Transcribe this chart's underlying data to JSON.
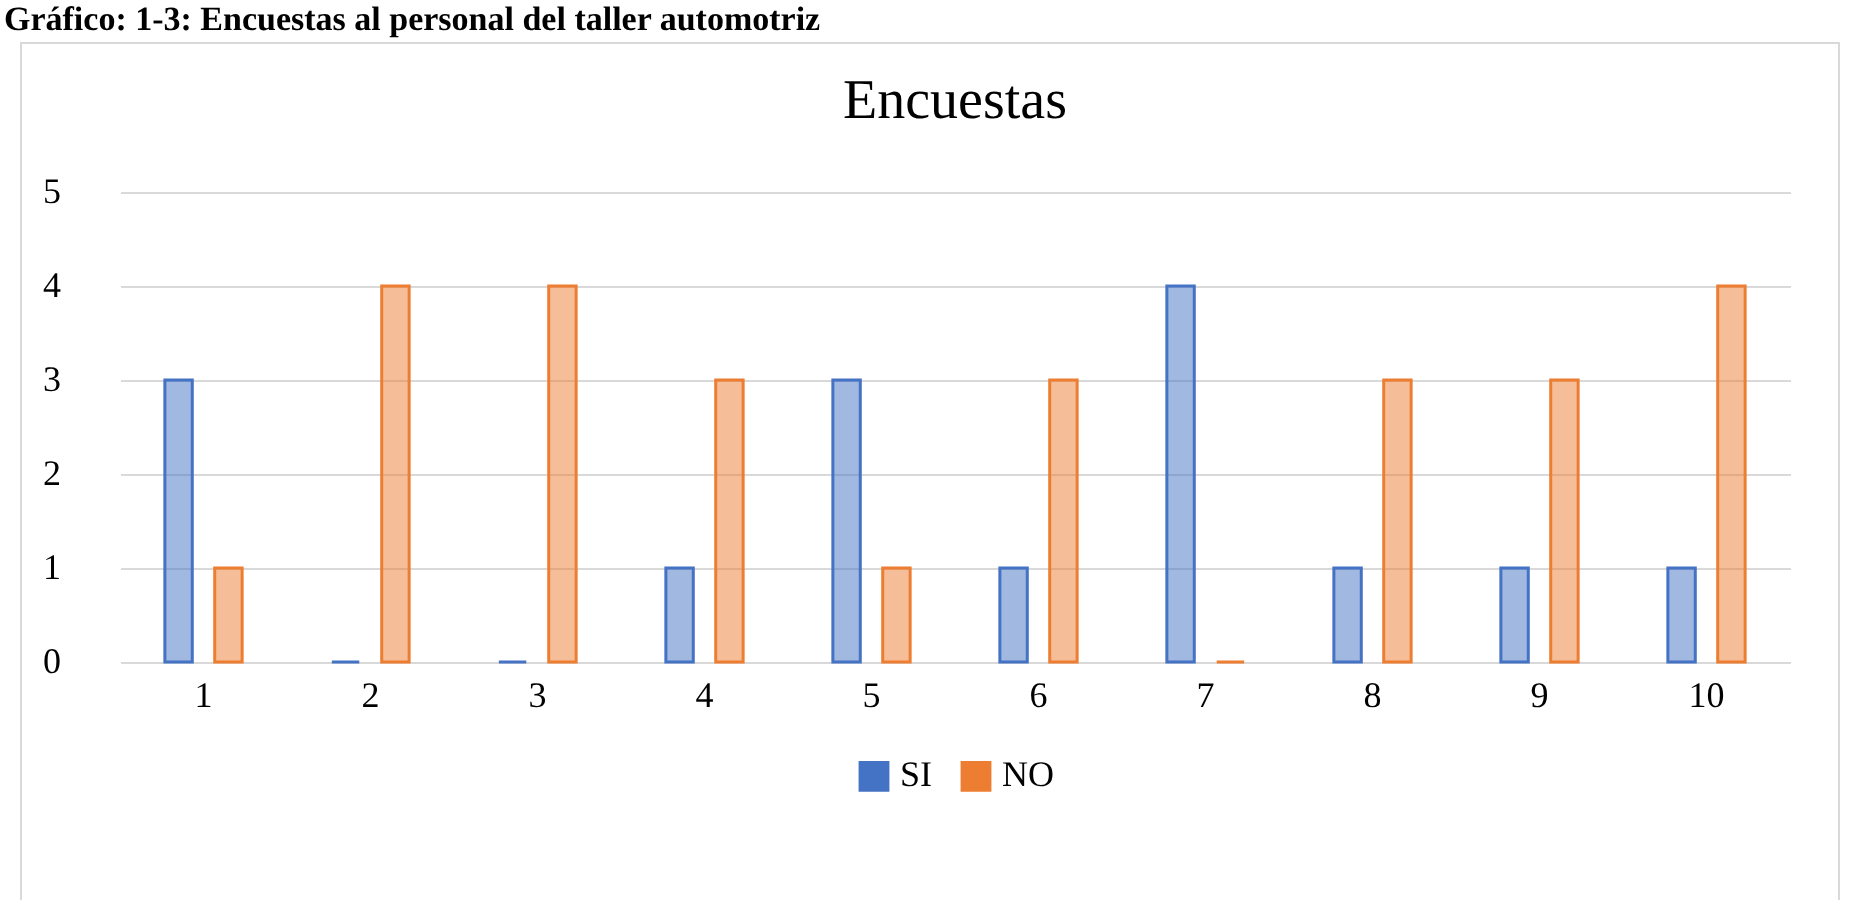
{
  "chart_data": {
    "type": "bar",
    "title": "Encuestas",
    "annotations": [
      "Gráfico: 1-3: Encuestas al personal del taller automotriz"
    ],
    "categories": [
      "1",
      "2",
      "3",
      "4",
      "5",
      "6",
      "7",
      "8",
      "9",
      "10"
    ],
    "series": [
      {
        "name": "SI",
        "color": "#4472c4",
        "values": [
          3,
          0,
          0,
          1,
          3,
          1,
          4,
          1,
          1,
          1
        ]
      },
      {
        "name": "NO",
        "color": "#ed7d31",
        "values": [
          1,
          4,
          4,
          3,
          1,
          3,
          0,
          3,
          3,
          4
        ]
      }
    ],
    "ylim": [
      0,
      5
    ],
    "yticks": [
      0,
      1,
      2,
      3,
      4,
      5
    ],
    "grid": "y",
    "legend": "bottom"
  }
}
